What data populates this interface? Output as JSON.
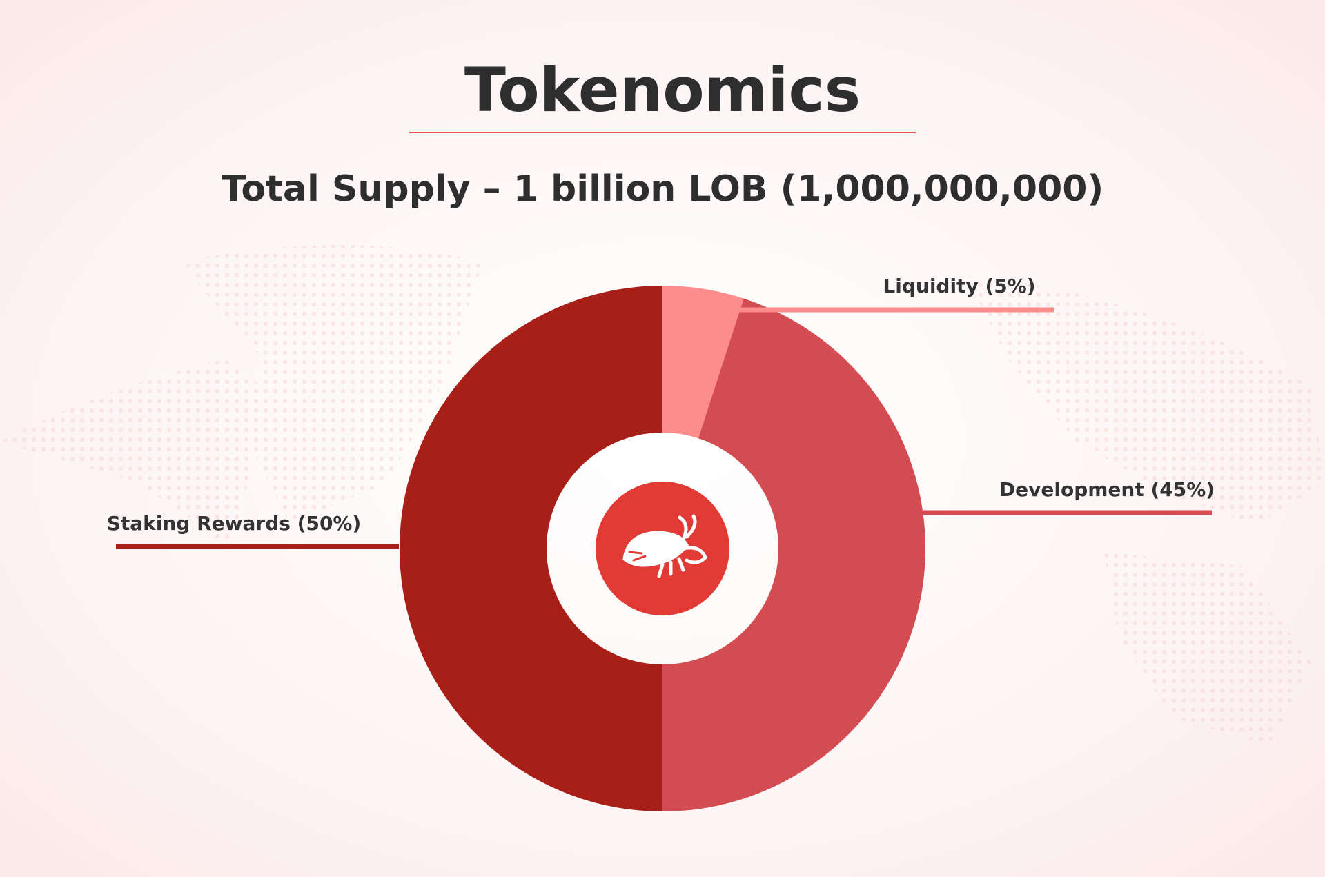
{
  "chart_data": {
    "type": "pie",
    "donut": true,
    "title": "Tokenomics",
    "subtitle": "Total Supply – 1 billion LOB (1,000,000,000)",
    "categories": [
      "Liquidity (5%)",
      "Development (45%)",
      "Staking Rewards (50%)"
    ],
    "values": [
      5,
      45,
      50
    ],
    "colors": [
      "#fd8d8c",
      "#d34c51",
      "#a81f17"
    ]
  }
}
